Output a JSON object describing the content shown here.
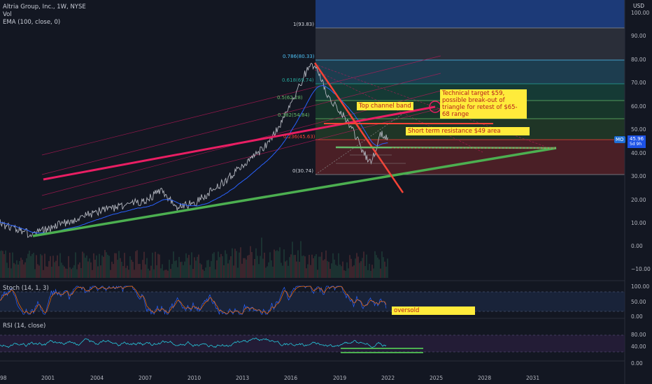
{
  "header": {
    "symbol_title": "Altria Group, Inc., 1W, NYSE",
    "indicator_vol": "Vol",
    "indicator_ema": "EMA (100, close, 0)",
    "currency": "USD"
  },
  "price_axis": {
    "ticks": [
      "100.00",
      "90.00",
      "80.00",
      "70.00",
      "60.00",
      "50.00",
      "40.00",
      "30.00",
      "20.00",
      "10.00",
      "0.00",
      "−10.00"
    ],
    "current_symbol": "MO",
    "current_price": "45.96",
    "countdown": "5d 9h"
  },
  "stoch": {
    "label": "Stoch (14, 1, 3)",
    "ticks": [
      "100.00",
      "50.00",
      "0.00"
    ],
    "annotation": "oversold"
  },
  "rsi": {
    "label": "RSI (14, close)",
    "ticks": [
      "80.00",
      "40.00",
      "0.00"
    ]
  },
  "time_axis": {
    "ticks": [
      "98",
      "2001",
      "2004",
      "2007",
      "2010",
      "2013",
      "2016",
      "2019",
      "2022",
      "2025",
      "2028",
      "2031"
    ]
  },
  "fib_levels": [
    {
      "label": "1(93.83)",
      "color": "#d1d4dc"
    },
    {
      "label": "0.786(80.33)",
      "color": "#4fc3f7"
    },
    {
      "label": "0.618(69.74)",
      "color": "#26a69a"
    },
    {
      "label": "0.5(62.28)",
      "color": "#66bb6a"
    },
    {
      "label": "0.382(54.84)",
      "color": "#66bb6a"
    },
    {
      "label": "0.236(45.63)",
      "color": "#f44336"
    },
    {
      "label": "0(30.74)",
      "color": "#d1d4dc"
    }
  ],
  "annotations": {
    "technical_target": "Technical target $59, possible break-out of triangle for retest of $65-68 range",
    "top_channel": "Top channel band",
    "short_term_resistance": "Short term resistance $49 area"
  },
  "colors": {
    "background": "#131722",
    "ema_line": "#2962ff",
    "trend_support": "#4caf50",
    "trend_channel": "#e91e63",
    "resistance": "#f44336",
    "annotation_bg": "#ffeb3b",
    "annotation_text": "#b71c1c"
  }
}
